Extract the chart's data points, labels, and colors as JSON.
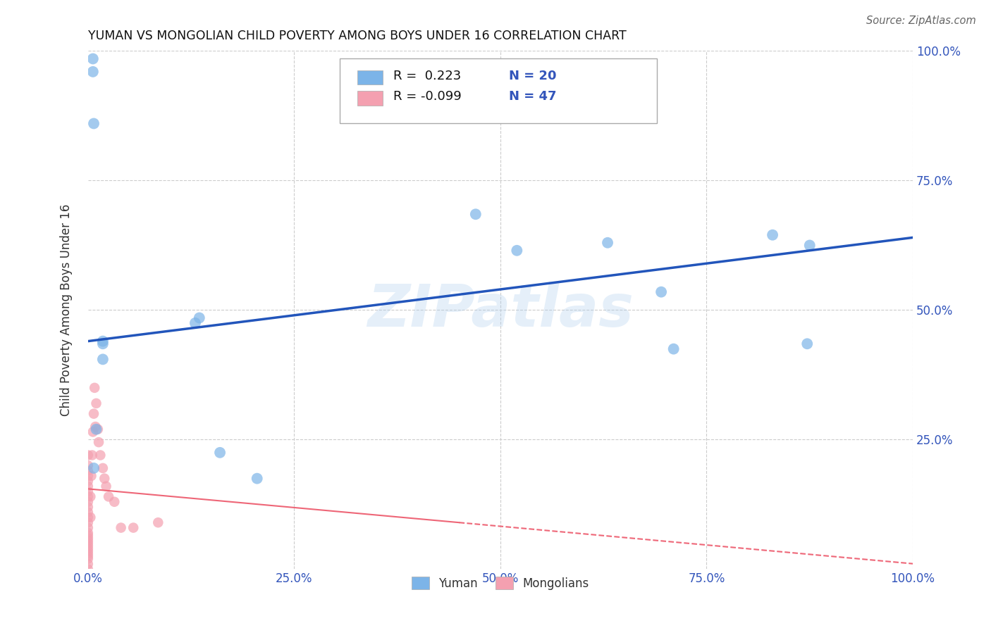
{
  "title": "YUMAN VS MONGOLIAN CHILD POVERTY AMONG BOYS UNDER 16 CORRELATION CHART",
  "source": "Source: ZipAtlas.com",
  "xlabel": "",
  "ylabel": "Child Poverty Among Boys Under 16",
  "xlim": [
    0,
    1.0
  ],
  "ylim": [
    0,
    1.0
  ],
  "background_color": "#ffffff",
  "grid_color": "#cccccc",
  "blue_color": "#7cb4e8",
  "pink_color": "#f4a0b0",
  "blue_line_color": "#2255bb",
  "pink_line_color": "#ee6677",
  "watermark": "ZIPatlas",
  "legend_R_blue": " 0.223",
  "legend_N_blue": "20",
  "legend_R_pink": "-0.099",
  "legend_N_pink": "47",
  "blue_line_x0": 0.0,
  "blue_line_y0": 0.44,
  "blue_line_x1": 1.0,
  "blue_line_y1": 0.64,
  "pink_line_x0": 0.0,
  "pink_line_y0": 0.155,
  "pink_line_x1": 0.45,
  "pink_line_y1": 0.09,
  "yuman_x": [
    0.006,
    0.007,
    0.13,
    0.135,
    0.47,
    0.52,
    0.63,
    0.695,
    0.83,
    0.875,
    0.018,
    0.018,
    0.01,
    0.007,
    0.018,
    0.16,
    0.205,
    0.71,
    0.872,
    0.006
  ],
  "yuman_y": [
    0.96,
    0.86,
    0.475,
    0.485,
    0.685,
    0.615,
    0.63,
    0.535,
    0.645,
    0.625,
    0.435,
    0.405,
    0.27,
    0.195,
    0.44,
    0.225,
    0.175,
    0.425,
    0.435,
    0.985
  ],
  "mongolian_x": [
    0.0,
    0.0,
    0.0,
    0.0,
    0.0,
    0.0,
    0.0,
    0.0,
    0.0,
    0.0,
    0.0,
    0.0,
    0.0,
    0.0,
    0.0,
    0.0,
    0.0,
    0.0,
    0.0,
    0.0,
    0.0,
    0.0,
    0.0,
    0.0,
    0.0,
    0.0,
    0.0,
    0.003,
    0.003,
    0.004,
    0.005,
    0.006,
    0.007,
    0.008,
    0.009,
    0.01,
    0.012,
    0.013,
    0.015,
    0.018,
    0.02,
    0.022,
    0.025,
    0.032,
    0.04,
    0.055,
    0.085
  ],
  "mongolian_y": [
    0.0,
    0.01,
    0.02,
    0.025,
    0.03,
    0.035,
    0.04,
    0.045,
    0.05,
    0.055,
    0.06,
    0.065,
    0.07,
    0.08,
    0.09,
    0.1,
    0.11,
    0.12,
    0.13,
    0.14,
    0.15,
    0.16,
    0.17,
    0.18,
    0.19,
    0.2,
    0.22,
    0.1,
    0.14,
    0.18,
    0.22,
    0.265,
    0.3,
    0.35,
    0.275,
    0.32,
    0.27,
    0.245,
    0.22,
    0.195,
    0.175,
    0.16,
    0.14,
    0.13,
    0.08,
    0.08,
    0.09
  ]
}
